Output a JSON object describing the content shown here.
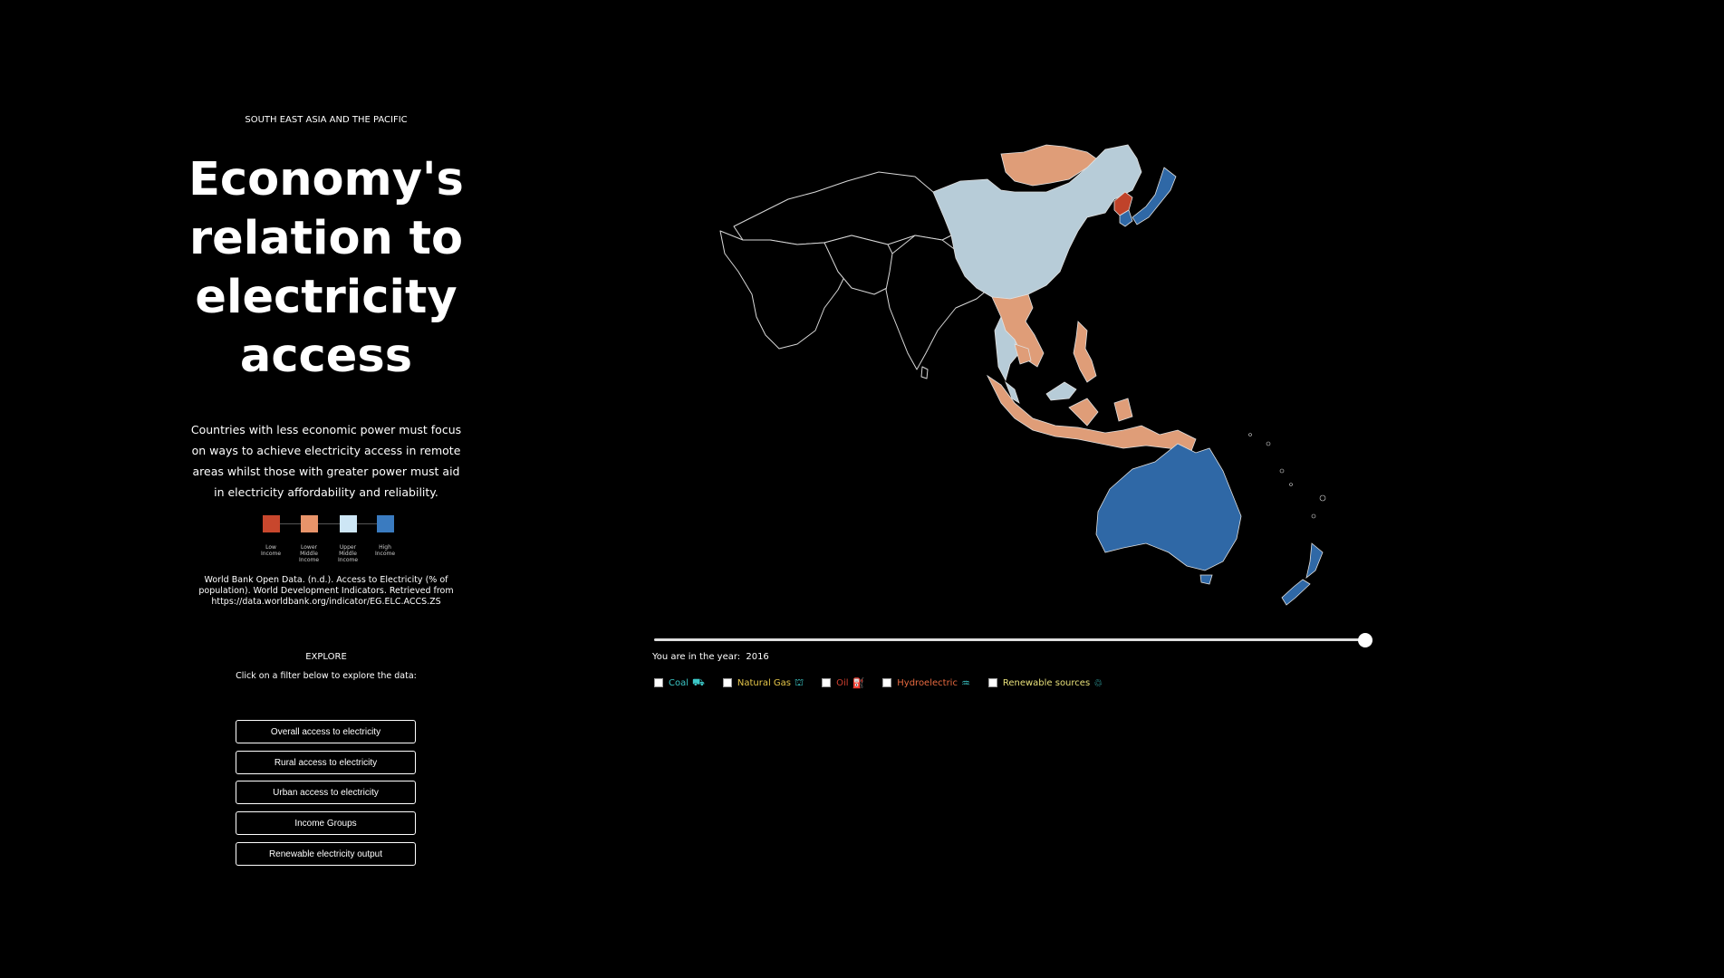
{
  "header": {
    "region": "SOUTH EAST ASIA AND THE PACIFIC"
  },
  "title": {
    "line1": "Economy's",
    "line2": "relation to",
    "line3": "electricity",
    "line4": "access"
  },
  "description": "Countries with less economic power must focus on ways to achieve electricity access in remote areas whilst those with greater power must aid in electricity affordability and reliability.",
  "legend": {
    "items": [
      {
        "label_lines": [
          "Low",
          "Income"
        ],
        "color": "#c8472d"
      },
      {
        "label_lines": [
          "Lower",
          "Middle",
          "Income"
        ],
        "color": "#e8946a"
      },
      {
        "label_lines": [
          "Upper",
          "Middle",
          "Income"
        ],
        "color": "#cde6f5"
      },
      {
        "label_lines": [
          "High",
          "Income"
        ],
        "color": "#3a7bc0"
      }
    ]
  },
  "citation": "World Bank Open Data. (n.d.). Access to Electricity (% of population). World Development Indicators. Retrieved from https://data.worldbank.org/indicator/EG.ELC.ACCS.ZS",
  "explore": {
    "heading": "EXPLORE",
    "instruction": "Click on a filter below to explore the data:",
    "buttons": [
      "Overall access to electricity",
      "Rural access to electricity",
      "Urban access to electricity",
      "Income Groups",
      "Renewable electricity output"
    ]
  },
  "timeline": {
    "label": "You are in the year:",
    "year": "2016",
    "position_fraction": 1.0
  },
  "filters": [
    {
      "label": "Coal",
      "color": "#3cc8c8",
      "icon": "coal-cart-icon"
    },
    {
      "label": "Natural Gas",
      "color": "#e8c84a",
      "icon": "gas-plant-icon"
    },
    {
      "label": "Oil",
      "color": "#d04030",
      "icon": "oil-pump-icon"
    },
    {
      "label": "Hydroelectric",
      "color": "#e86a40",
      "icon": "dam-icon"
    },
    {
      "label": "Renewable sources",
      "color": "#e8e07a",
      "icon": "recycle-icon"
    }
  ],
  "map": {
    "income_colors": {
      "low": "#c0432a",
      "lower_middle": "#df9d78",
      "upper_middle": "#b7ccd8",
      "high": "#2f68a6"
    }
  }
}
